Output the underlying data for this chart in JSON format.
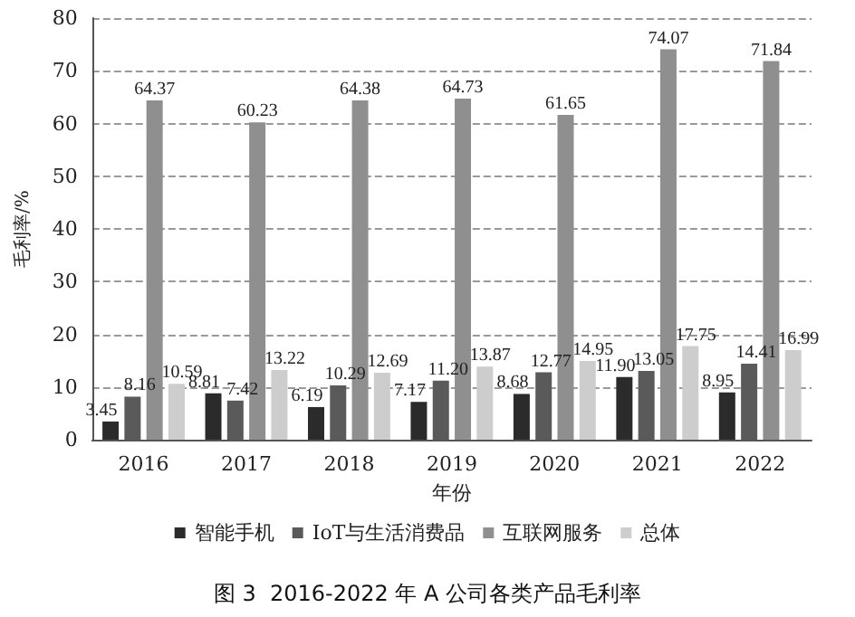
{
  "chart_data": {
    "type": "bar",
    "title": "图 3  2016-2022 年 A 公司各类产品毛利率",
    "xlabel": "年份",
    "ylabel": "毛利率/%",
    "categories": [
      "2016",
      "2017",
      "2018",
      "2019",
      "2020",
      "2021",
      "2022"
    ],
    "series": [
      {
        "name": "智能手机",
        "color": "#2b2b2b",
        "values": [
          3.45,
          8.81,
          6.19,
          7.17,
          8.68,
          11.9,
          8.95
        ],
        "value_labels": [
          "3.45",
          "8.81",
          "6.19",
          "7.17",
          "8.68",
          "11.90",
          "8.95"
        ]
      },
      {
        "name": "IoT与生活消费品",
        "color": "#5a5a5a",
        "values": [
          8.16,
          7.42,
          10.29,
          11.2,
          12.77,
          13.05,
          14.41
        ],
        "value_labels": [
          "8.16",
          "7.42",
          "10.29",
          "11.20",
          "12.77",
          "13.05",
          "14.41"
        ]
      },
      {
        "name": "互联网服务",
        "color": "#8f8f8f",
        "values": [
          64.37,
          60.23,
          64.38,
          64.73,
          61.65,
          74.07,
          71.84
        ],
        "value_labels": [
          "64.37",
          "60.23",
          "64.38",
          "64.73",
          "61.65",
          "74.07",
          "71.84"
        ]
      },
      {
        "name": "总体",
        "color": "#cdcdcd",
        "values": [
          10.59,
          13.22,
          12.69,
          13.87,
          14.95,
          17.75,
          16.99
        ],
        "value_labels": [
          "10.59",
          "13.22",
          "12.69",
          "13.87",
          "14.95",
          "17.75",
          "16.99"
        ]
      }
    ],
    "ylim": [
      0,
      80
    ],
    "yticks": [
      0,
      10,
      20,
      30,
      40,
      50,
      60,
      70,
      80
    ],
    "grid": "y",
    "legend": "bottom"
  }
}
